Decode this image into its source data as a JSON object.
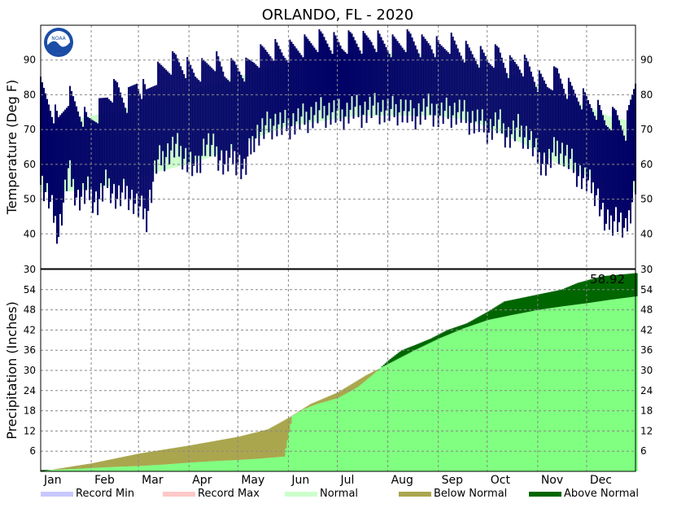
{
  "title": "ORLANDO, FL - 2020",
  "logo_text": "NOAA",
  "colors": {
    "record_min": "#c8c8ff",
    "record_max": "#ffc8c8",
    "normal_band": "#ccffcc",
    "observed_range": "#000066",
    "normal_precip": "#80ff80",
    "below_normal": "#aaa64e",
    "above_normal": "#006600",
    "grid": "#888888"
  },
  "legend": [
    {
      "key": "record_min",
      "label": "Record Min"
    },
    {
      "key": "record_max",
      "label": "Record Max"
    },
    {
      "key": "normal",
      "label": "Normal"
    },
    {
      "key": "below_normal",
      "label": "Below Normal"
    },
    {
      "key": "above_normal",
      "label": "Above Normal"
    }
  ],
  "chart_data": [
    {
      "type": "area",
      "panel": "temperature",
      "ylabel": "Temperature (Deg F)",
      "ylim": [
        30,
        100
      ],
      "yticks": [
        40,
        50,
        60,
        70,
        80,
        90
      ],
      "grid": true,
      "x_unit": "day of year 2020",
      "series": [
        {
          "name": "Normal",
          "x": [
            1,
            15,
            32,
            46,
            60,
            74,
            91,
            105,
            121,
            135,
            152,
            166,
            182,
            196,
            213,
            227,
            244,
            258,
            274,
            288,
            305,
            319,
            335,
            349,
            366
          ],
          "low": [
            52,
            52,
            53,
            54,
            56,
            58,
            60,
            62,
            65,
            68,
            71,
            72,
            73,
            74,
            74,
            74,
            74,
            73,
            71,
            68,
            64,
            60,
            57,
            54,
            52
          ],
          "high": [
            71,
            72,
            74,
            75,
            77,
            79,
            81,
            83,
            85,
            87,
            89,
            90,
            91,
            92,
            92,
            92,
            91,
            90,
            88,
            86,
            83,
            80,
            77,
            74,
            72
          ]
        },
        {
          "name": "Observed",
          "x": [
            1,
            6,
            12,
            18,
            24,
            30,
            36,
            42,
            48,
            54,
            60,
            66,
            72,
            78,
            84,
            90,
            96,
            102,
            108,
            114,
            120,
            126,
            132,
            138,
            144,
            150,
            156,
            162,
            168,
            174,
            180,
            186,
            192,
            198,
            204,
            210,
            216,
            222,
            228,
            234,
            240,
            246,
            252,
            258,
            264,
            270,
            276,
            282,
            288,
            294,
            300,
            306,
            312,
            318,
            324,
            330,
            336,
            342,
            348,
            354,
            360,
            366
          ],
          "low": [
            55,
            50,
            40,
            58,
            50,
            52,
            49,
            55,
            50,
            52,
            48,
            45,
            60,
            63,
            65,
            62,
            58,
            66,
            64,
            60,
            62,
            58,
            68,
            70,
            72,
            71,
            72,
            73,
            74,
            75,
            75,
            74,
            76,
            75,
            76,
            76,
            75,
            76,
            74,
            75,
            76,
            74,
            75,
            75,
            73,
            72,
            70,
            72,
            68,
            70,
            68,
            62,
            60,
            65,
            62,
            58,
            55,
            52,
            42,
            45,
            40,
            55
          ],
          "high": [
            82,
            78,
            72,
            80,
            76,
            72,
            75,
            80,
            82,
            78,
            84,
            80,
            86,
            88,
            90,
            88,
            86,
            88,
            90,
            86,
            88,
            87,
            90,
            92,
            93,
            92,
            93,
            94,
            95,
            96,
            95,
            94,
            96,
            95,
            96,
            95,
            94,
            95,
            96,
            94,
            95,
            93,
            95,
            93,
            92,
            91,
            90,
            92,
            88,
            89,
            88,
            84,
            83,
            86,
            82,
            80,
            78,
            76,
            72,
            74,
            70,
            84
          ]
        }
      ]
    },
    {
      "type": "area",
      "panel": "precipitation",
      "ylabel": "Precipitation (Inches)",
      "ylim": [
        0,
        60
      ],
      "yticks": [
        6,
        12,
        18,
        24,
        30,
        36,
        42,
        48,
        54
      ],
      "corner_label": "30",
      "grid": true,
      "x_unit": "day of year 2020",
      "x_categories": [
        "Jan",
        "Feb",
        "Mar",
        "Apr",
        "May",
        "Jun",
        "Jul",
        "Aug",
        "Sep",
        "Oct",
        "Nov",
        "Dec"
      ],
      "month_start_days": [
        1,
        32,
        61,
        92,
        122,
        153,
        183,
        214,
        245,
        275,
        306,
        336
      ],
      "annotation": "58.92",
      "series": [
        {
          "name": "Normal",
          "x": [
            1,
            32,
            61,
            92,
            122,
            140,
            153,
            166,
            183,
            200,
            214,
            230,
            245,
            260,
            275,
            290,
            306,
            320,
            336,
            350,
            366
          ],
          "values": [
            0,
            2.4,
            5.3,
            7.7,
            10.3,
            12.5,
            16,
            20,
            23.5,
            28.5,
            32,
            36,
            39.5,
            42.5,
            45,
            46.5,
            48,
            49,
            50,
            51,
            52
          ]
        },
        {
          "name": "Observed",
          "x": [
            1,
            10,
            20,
            32,
            40,
            50,
            61,
            75,
            92,
            105,
            122,
            135,
            150,
            155,
            162,
            170,
            183,
            195,
            205,
            214,
            222,
            230,
            240,
            250,
            262,
            275,
            285,
            300,
            310,
            320,
            330,
            345,
            366
          ],
          "values": [
            0.4,
            0.5,
            0.7,
            1,
            1.2,
            1.4,
            1.6,
            2,
            2.6,
            3,
            3.4,
            3.8,
            4.4,
            16.5,
            18.5,
            20,
            21.8,
            25,
            29,
            33,
            36,
            37.5,
            39.5,
            42,
            44,
            47.5,
            50.5,
            52,
            53,
            54,
            56,
            58,
            58.92
          ]
        }
      ]
    }
  ]
}
